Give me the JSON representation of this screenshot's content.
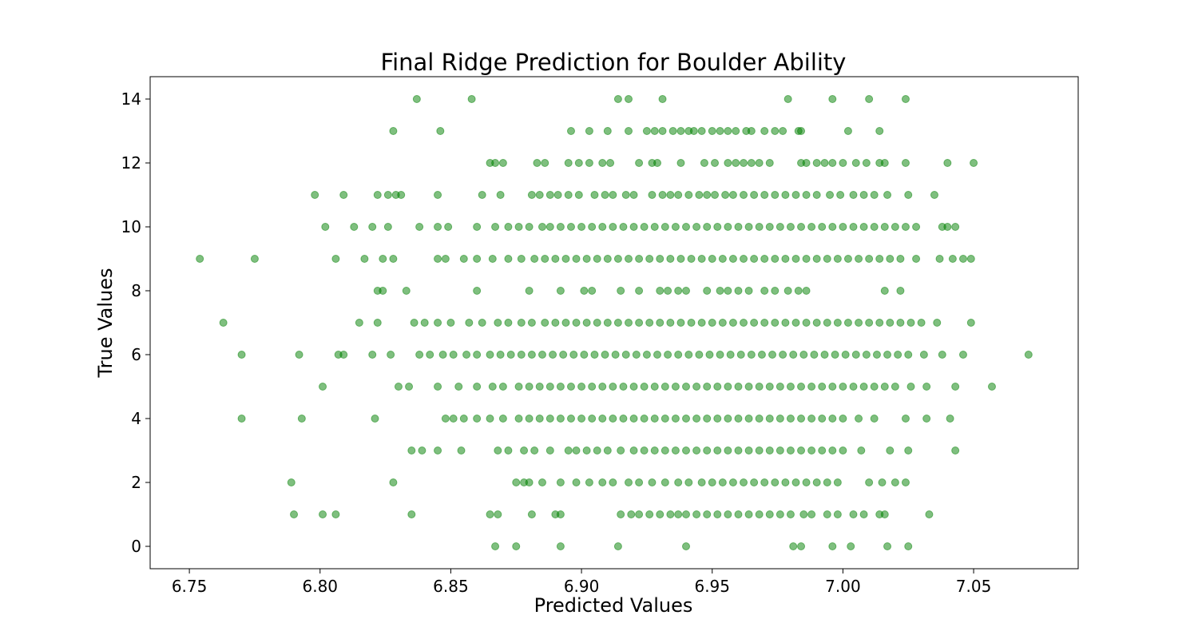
{
  "chart_data": {
    "type": "scatter",
    "title": "Final Ridge Prediction for Boulder Ability",
    "xlabel": "Predicted Values",
    "ylabel": "True Values",
    "xlim": [
      6.735,
      7.09
    ],
    "ylim": [
      -0.7,
      14.7
    ],
    "x_ticks": [
      6.75,
      6.8,
      6.85,
      6.9,
      6.95,
      7.0,
      7.05
    ],
    "x_tick_labels": [
      "6.75",
      "6.80",
      "6.85",
      "6.90",
      "6.95",
      "7.00",
      "7.05"
    ],
    "y_ticks": [
      0,
      2,
      4,
      6,
      8,
      10,
      12,
      14
    ],
    "y_tick_labels": [
      "0",
      "2",
      "4",
      "6",
      "8",
      "10",
      "12",
      "14"
    ],
    "grid": false,
    "marker_color": "#008000",
    "marker_alpha": 0.5,
    "series": [
      {
        "rows": [
          {
            "y": 14,
            "x": [
              6.837,
              6.858,
              6.914,
              6.918,
              6.931,
              6.979,
              6.996,
              7.01,
              7.024
            ]
          },
          {
            "y": 13,
            "x": [
              6.828,
              6.846,
              6.896,
              6.903,
              6.91,
              6.918,
              6.925,
              6.928,
              6.931,
              6.935,
              6.938,
              6.941,
              6.943,
              6.946,
              6.95,
              6.953,
              6.956,
              6.959,
              6.963,
              6.965,
              6.97,
              6.974,
              6.977,
              6.983,
              6.984,
              7.002,
              7.014
            ]
          },
          {
            "y": 12,
            "x": [
              6.865,
              6.867,
              6.87,
              6.883,
              6.886,
              6.895,
              6.899,
              6.903,
              6.908,
              6.911,
              6.922,
              6.927,
              6.929,
              6.938,
              6.947,
              6.951,
              6.956,
              6.959,
              6.962,
              6.965,
              6.968,
              6.972,
              6.984,
              6.986,
              6.99,
              6.993,
              6.996,
              7.0,
              7.005,
              7.009,
              7.014,
              7.016,
              7.024,
              7.04,
              7.05
            ]
          },
          {
            "y": 11,
            "x": [
              6.798,
              6.809,
              6.822,
              6.826,
              6.829,
              6.831,
              6.845,
              6.862,
              6.869,
              6.881,
              6.884,
              6.888,
              6.891,
              6.895,
              6.899,
              6.905,
              6.909,
              6.912,
              6.917,
              6.92,
              6.927,
              6.931,
              6.934,
              6.937,
              6.941,
              6.945,
              6.948,
              6.951,
              6.955,
              6.958,
              6.962,
              6.966,
              6.97,
              6.974,
              6.978,
              6.982,
              6.986,
              6.99,
              6.995,
              6.999,
              7.004,
              7.008,
              7.012,
              7.017,
              7.025,
              7.035
            ]
          },
          {
            "y": 10,
            "x": [
              6.802,
              6.813,
              6.82,
              6.826,
              6.838,
              6.845,
              6.849,
              6.86,
              6.867,
              6.872,
              6.876,
              6.88,
              6.885,
              6.888,
              6.892,
              6.896,
              6.9,
              6.904,
              6.908,
              6.912,
              6.916,
              6.92,
              6.924,
              6.928,
              6.932,
              6.936,
              6.94,
              6.944,
              6.948,
              6.952,
              6.956,
              6.96,
              6.964,
              6.968,
              6.972,
              6.976,
              6.98,
              6.984,
              6.988,
              6.992,
              6.996,
              7.0,
              7.004,
              7.008,
              7.012,
              7.016,
              7.02,
              7.024,
              7.028,
              7.038,
              7.04,
              7.043
            ]
          },
          {
            "y": 9,
            "x": [
              6.754,
              6.775,
              6.806,
              6.817,
              6.824,
              6.828,
              6.845,
              6.848,
              6.855,
              6.86,
              6.866,
              6.872,
              6.877,
              6.882,
              6.886,
              6.89,
              6.894,
              6.898,
              6.902,
              6.906,
              6.91,
              6.914,
              6.918,
              6.922,
              6.926,
              6.93,
              6.934,
              6.938,
              6.942,
              6.946,
              6.95,
              6.954,
              6.958,
              6.962,
              6.966,
              6.97,
              6.974,
              6.978,
              6.982,
              6.986,
              6.99,
              6.994,
              6.998,
              7.002,
              7.006,
              7.01,
              7.014,
              7.018,
              7.022,
              7.028,
              7.037,
              7.042,
              7.046,
              7.049
            ]
          },
          {
            "y": 8,
            "x": [
              6.822,
              6.824,
              6.833,
              6.86,
              6.88,
              6.892,
              6.901,
              6.904,
              6.915,
              6.922,
              6.93,
              6.933,
              6.937,
              6.94,
              6.948,
              6.953,
              6.956,
              6.96,
              6.964,
              6.97,
              6.974,
              6.979,
              6.983,
              6.986,
              7.016,
              7.022
            ]
          },
          {
            "y": 7,
            "x": [
              6.763,
              6.815,
              6.822,
              6.836,
              6.84,
              6.845,
              6.85,
              6.857,
              6.862,
              6.868,
              6.872,
              6.877,
              6.881,
              6.886,
              6.89,
              6.894,
              6.898,
              6.902,
              6.906,
              6.91,
              6.914,
              6.918,
              6.922,
              6.926,
              6.93,
              6.934,
              6.938,
              6.942,
              6.946,
              6.95,
              6.954,
              6.958,
              6.962,
              6.966,
              6.97,
              6.974,
              6.978,
              6.982,
              6.986,
              6.99,
              6.994,
              6.998,
              7.002,
              7.006,
              7.01,
              7.014,
              7.018,
              7.022,
              7.026,
              7.03,
              7.036,
              7.049
            ]
          },
          {
            "y": 6,
            "x": [
              6.77,
              6.792,
              6.807,
              6.809,
              6.82,
              6.827,
              6.838,
              6.842,
              6.847,
              6.851,
              6.856,
              6.86,
              6.865,
              6.869,
              6.873,
              6.877,
              6.881,
              6.885,
              6.889,
              6.893,
              6.897,
              6.901,
              6.905,
              6.909,
              6.913,
              6.917,
              6.921,
              6.925,
              6.929,
              6.933,
              6.937,
              6.941,
              6.945,
              6.949,
              6.953,
              6.957,
              6.961,
              6.965,
              6.969,
              6.973,
              6.977,
              6.981,
              6.985,
              6.989,
              6.993,
              6.997,
              7.001,
              7.005,
              7.009,
              7.013,
              7.017,
              7.021,
              7.025,
              7.031,
              7.038,
              7.046,
              7.071
            ]
          },
          {
            "y": 5,
            "x": [
              6.801,
              6.83,
              6.834,
              6.845,
              6.853,
              6.86,
              6.866,
              6.87,
              6.876,
              6.88,
              6.884,
              6.888,
              6.892,
              6.896,
              6.9,
              6.904,
              6.908,
              6.912,
              6.916,
              6.92,
              6.924,
              6.928,
              6.932,
              6.936,
              6.94,
              6.944,
              6.948,
              6.952,
              6.956,
              6.96,
              6.964,
              6.968,
              6.972,
              6.976,
              6.98,
              6.984,
              6.988,
              6.992,
              6.996,
              7.0,
              7.004,
              7.008,
              7.012,
              7.016,
              7.02,
              7.026,
              7.032,
              7.043,
              7.057
            ]
          },
          {
            "y": 4,
            "x": [
              6.77,
              6.793,
              6.821,
              6.848,
              6.851,
              6.855,
              6.86,
              6.865,
              6.87,
              6.876,
              6.88,
              6.884,
              6.888,
              6.892,
              6.896,
              6.9,
              6.904,
              6.908,
              6.912,
              6.916,
              6.92,
              6.924,
              6.928,
              6.932,
              6.936,
              6.94,
              6.944,
              6.948,
              6.952,
              6.956,
              6.96,
              6.964,
              6.968,
              6.972,
              6.976,
              6.98,
              6.984,
              6.988,
              6.992,
              6.996,
              7.0,
              7.006,
              7.012,
              7.024,
              7.032,
              7.041
            ]
          },
          {
            "y": 3,
            "x": [
              6.835,
              6.839,
              6.845,
              6.854,
              6.868,
              6.872,
              6.878,
              6.882,
              6.888,
              6.895,
              6.898,
              6.902,
              6.906,
              6.91,
              6.915,
              6.92,
              6.924,
              6.928,
              6.932,
              6.936,
              6.94,
              6.944,
              6.948,
              6.952,
              6.956,
              6.96,
              6.964,
              6.968,
              6.972,
              6.976,
              6.98,
              6.984,
              6.988,
              6.992,
              6.996,
              7.0,
              7.007,
              7.018,
              7.025,
              7.043
            ]
          },
          {
            "y": 2,
            "x": [
              6.789,
              6.828,
              6.875,
              6.878,
              6.88,
              6.885,
              6.892,
              6.898,
              6.903,
              6.908,
              6.912,
              6.918,
              6.922,
              6.927,
              6.932,
              6.937,
              6.941,
              6.946,
              6.95,
              6.954,
              6.958,
              6.962,
              6.966,
              6.97,
              6.974,
              6.978,
              6.982,
              6.986,
              6.99,
              6.994,
              6.998,
              7.01,
              7.015,
              7.02,
              7.024
            ]
          },
          {
            "y": 1,
            "x": [
              6.79,
              6.801,
              6.806,
              6.835,
              6.865,
              6.868,
              6.881,
              6.89,
              6.892,
              6.915,
              6.919,
              6.922,
              6.926,
              6.93,
              6.934,
              6.937,
              6.94,
              6.944,
              6.948,
              6.952,
              6.956,
              6.96,
              6.964,
              6.968,
              6.972,
              6.976,
              6.98,
              6.985,
              6.988,
              6.994,
              6.998,
              7.004,
              7.008,
              7.014,
              7.016,
              7.033
            ]
          },
          {
            "y": 0,
            "x": [
              6.867,
              6.875,
              6.892,
              6.914,
              6.94,
              6.981,
              6.984,
              6.996,
              7.003,
              7.017,
              7.025
            ]
          }
        ]
      }
    ]
  }
}
